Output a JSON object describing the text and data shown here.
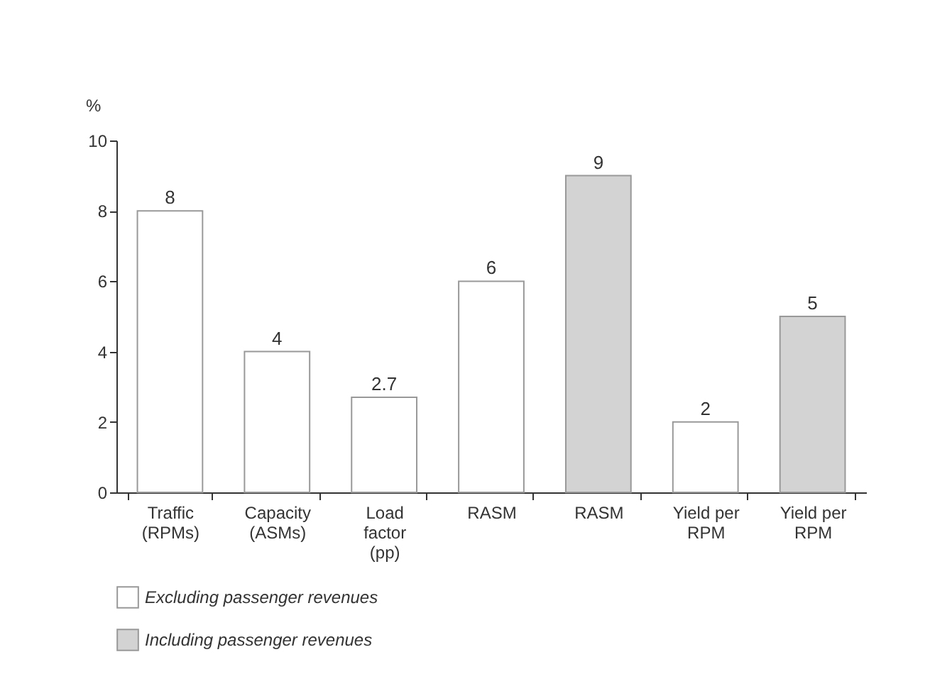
{
  "chart_data": {
    "type": "bar",
    "ylabel": "%",
    "categories": [
      "Traffic\n(RPMs)",
      "Capacity\n(ASMs)",
      "Load\nfactor\n(pp)",
      "RASM",
      "RASM",
      "Yield per\nRPM",
      "Yield per\nRPM"
    ],
    "series": [
      {
        "name": "Excluding passenger revenues",
        "color": "#ffffff",
        "values": [
          8,
          4,
          2.7,
          6,
          null,
          2,
          null
        ]
      },
      {
        "name": "Including passenger revenues",
        "color": "#d3d3d3",
        "values": [
          null,
          null,
          null,
          null,
          9,
          null,
          5
        ]
      }
    ],
    "ylim": [
      0,
      10
    ],
    "yticks": [
      0,
      2,
      4,
      6,
      8,
      10
    ],
    "grid": false,
    "legend": "bottom",
    "data_labels": true
  }
}
